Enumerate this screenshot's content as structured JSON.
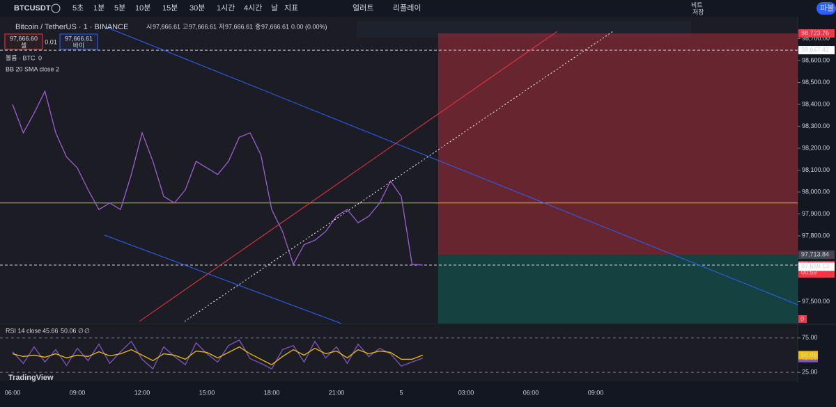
{
  "toolbar": {
    "symbol": "BTCUSDT",
    "intervals": [
      "5초",
      "1분",
      "5분",
      "10분",
      "15분",
      "30분",
      "1시간",
      "4시간",
      "날"
    ],
    "indicators": "지표",
    "alert": "얼러트",
    "replay": "리플레이",
    "layout_name": "비트",
    "layout_status": "저장",
    "publish": "파블"
  },
  "legend": {
    "title": "Bitcoin / TetherUS · 1 · BINANCE",
    "open_label": "시",
    "open": "97,666.61",
    "high_label": "고",
    "high": "97,666.61",
    "low_label": "저",
    "low": "97,666.61",
    "close_label": "종",
    "close": "97,666.61",
    "change": "0.00 (0.00%)",
    "sell_price": "97,666.60",
    "sell": "셀",
    "spread": "0.01",
    "buy_price": "97,666.61",
    "buy": "바이",
    "volume": "볼륨 · BTC",
    "volume_value": "0",
    "bb": "BB 20 SMA close 2"
  },
  "chart_data": [
    {
      "type": "line",
      "ylim": [
        97400,
        98800
      ],
      "yticks": [
        {
          "value": 98700,
          "label": "98,700.00"
        },
        {
          "value": 98600,
          "label": "98,600.00"
        },
        {
          "value": 98500,
          "label": "98,500.00"
        },
        {
          "value": 98400,
          "label": "98,400.00"
        },
        {
          "value": 98300,
          "label": "98,300.00"
        },
        {
          "value": 98200,
          "label": "98,200.00"
        },
        {
          "value": 98100,
          "label": "98,100.00"
        },
        {
          "value": 98000,
          "label": "98,000.00"
        },
        {
          "value": 97900,
          "label": "97,900.00"
        },
        {
          "value": 97800,
          "label": "97,800.00"
        },
        {
          "value": 97500,
          "label": "97,500.00"
        }
      ],
      "series": [
        {
          "color": "#9c5fd4",
          "values": [
            98400,
            98270,
            98360,
            98460,
            98270,
            98160,
            98110,
            98010,
            97920,
            97950,
            97920,
            98080,
            98270,
            98140,
            97980,
            97950,
            98010,
            98140,
            98110,
            98080,
            98140,
            98250,
            98270,
            98170,
            97920,
            97820,
            97670,
            97760,
            97780,
            97820,
            97890,
            97920,
            97860,
            97890,
            97950,
            98050,
            97980,
            97670,
            97666.61
          ]
        }
      ],
      "hlines": [
        {
          "value": 98647.42,
          "color": "#d1d4dc",
          "dashed": true
        },
        {
          "value": 97950,
          "color": "#f0c000",
          "dashed": false
        },
        {
          "value": 97666.61,
          "color": "#d1d4dc",
          "dashed": true
        }
      ],
      "position": {
        "target": 98723.76,
        "entry": 97713.84
      },
      "markers": [
        {
          "value": 98723.76,
          "label": "98,723.76",
          "color": "#f23645"
        },
        {
          "value": 98647.42,
          "label": "98,647.42",
          "color": "#ffffff"
        },
        {
          "value": 97713.84,
          "label": "97,713.84",
          "color": "#434651"
        },
        {
          "value": 97666.61,
          "label": "97,666.61",
          "color": "#f23645"
        },
        {
          "value": 97659.13,
          "label": "97,659.13",
          "color": "#ffffff"
        }
      ],
      "countdown": "00:59",
      "pnl": "0"
    },
    {
      "type": "line",
      "title": "RSI 14 close",
      "ylim": [
        12,
        93
      ],
      "yticks": [
        {
          "value": 75,
          "label": "75.00"
        },
        {
          "value": 25,
          "label": "25.00"
        }
      ],
      "series": [
        {
          "name": "45.66",
          "color": "#7e57c2",
          "values": [
            55,
            38,
            62,
            40,
            58,
            35,
            60,
            42,
            66,
            38,
            55,
            70,
            44,
            30,
            62,
            48,
            36,
            68,
            52,
            40,
            64,
            72,
            45,
            38,
            30,
            58,
            64,
            40,
            70,
            46,
            62,
            38,
            66,
            48,
            60,
            52,
            34,
            40,
            45.66
          ],
          "value_labels": null
        },
        {
          "name": "50.06",
          "color": "#f0c000",
          "values": [
            52,
            48,
            50,
            47,
            52,
            46,
            50,
            48,
            55,
            49,
            52,
            58,
            50,
            42,
            52,
            50,
            44,
            56,
            54,
            46,
            54,
            62,
            52,
            44,
            36,
            48,
            58,
            50,
            60,
            52,
            56,
            46,
            58,
            52,
            56,
            54,
            44,
            44,
            50.06
          ]
        }
      ],
      "empty1": "∅",
      "empty2": "∅"
    }
  ],
  "time_labels": [
    "06:00",
    "09:00",
    "12:00",
    "15:00",
    "18:00",
    "21:00",
    "5",
    "03:00",
    "06:00",
    "09:00"
  ],
  "watermark": "TradingView"
}
